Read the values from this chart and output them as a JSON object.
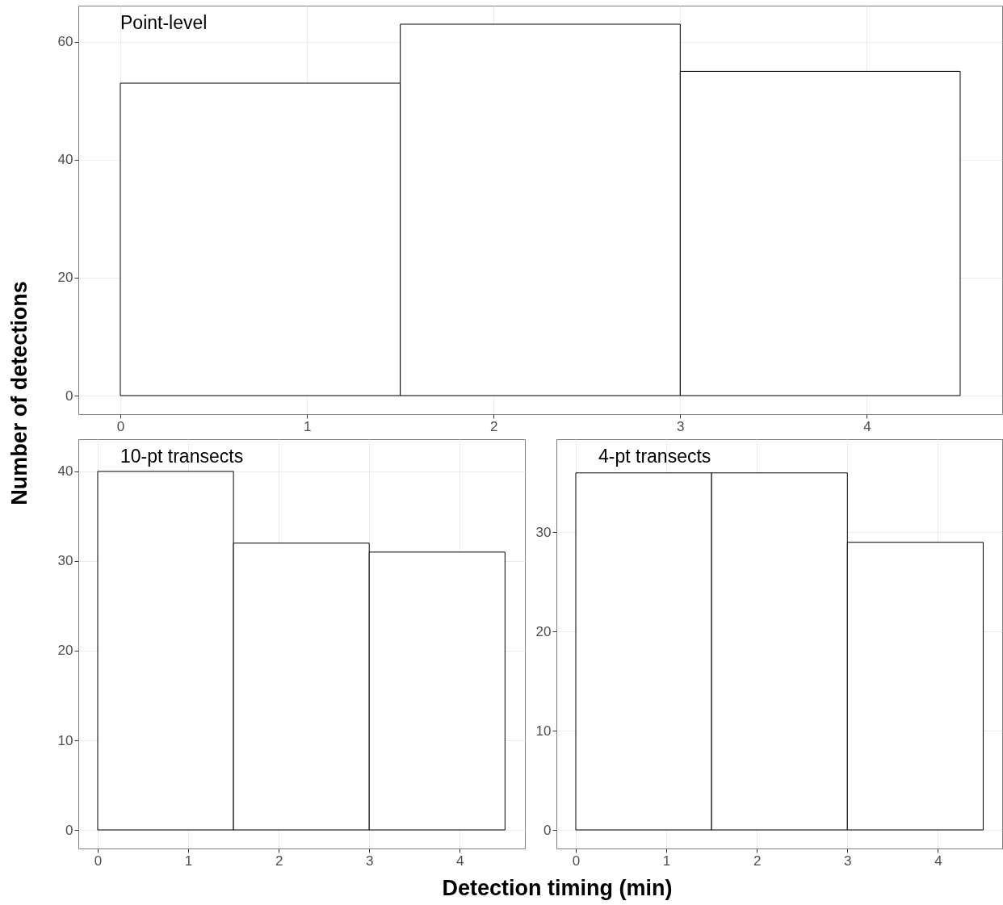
{
  "chart_data": [
    {
      "type": "histogram",
      "title": "Point-level",
      "ylabel": "Number of detections",
      "bins": [
        0,
        1.5,
        3,
        4.5
      ],
      "values": [
        53,
        63,
        55
      ],
      "color": "#ffffff",
      "xlim": [
        -0.225,
        4.725
      ],
      "xticks": [
        0,
        1,
        2,
        3,
        4
      ],
      "ylim": [
        -3.15,
        66.15
      ],
      "yticks": [
        0,
        20,
        40,
        60
      ],
      "grid": true
    },
    {
      "type": "histogram",
      "title": "10-pt transects",
      "bins": [
        0,
        1.5,
        3,
        4.5
      ],
      "values": [
        40,
        32,
        31
      ],
      "color": "#ffffff",
      "xlim": [
        -0.214,
        4.72
      ],
      "xticks": [
        0,
        1,
        2,
        3,
        4
      ],
      "ylim": [
        -2.07,
        43.6
      ],
      "yticks": [
        0,
        10,
        20,
        30,
        40
      ],
      "grid": true
    },
    {
      "type": "histogram",
      "title": "4-pt transects",
      "xlabel": "Detection timing (min)",
      "bins": [
        0,
        1.5,
        3,
        4.5
      ],
      "values": [
        36,
        36,
        29
      ],
      "color": "#ffffff",
      "xlim": [
        -0.214,
        4.71
      ],
      "xticks": [
        0,
        1,
        2,
        3,
        4
      ],
      "ylim": [
        -1.87,
        39.4
      ],
      "yticks": [
        0,
        10,
        20,
        30
      ],
      "grid": true
    }
  ]
}
